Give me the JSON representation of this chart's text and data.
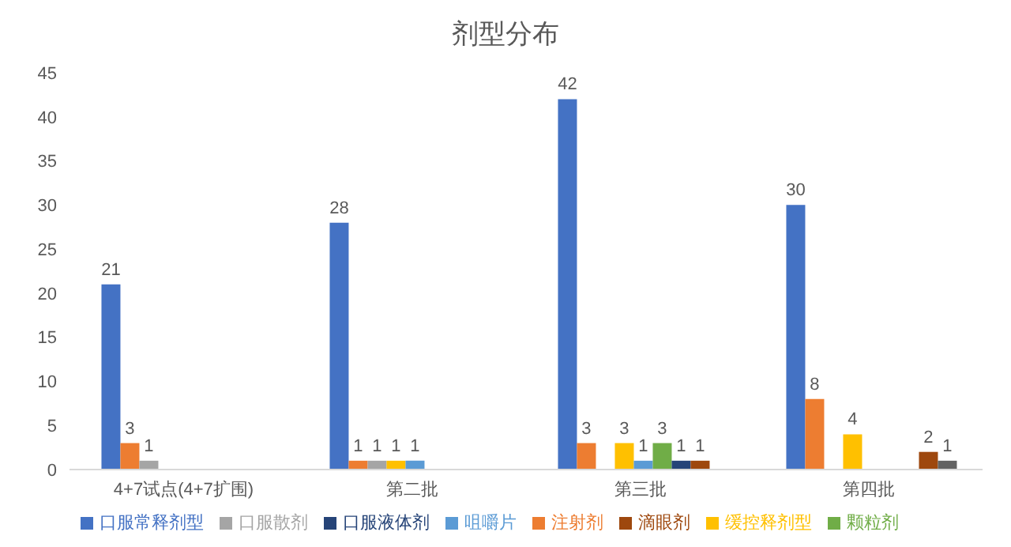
{
  "chart_data": {
    "type": "bar",
    "title": "剂型分布",
    "categories": [
      "4+7试点(4+7扩围)",
      "第二批",
      "第三批",
      "第四批"
    ],
    "series": [
      {
        "name": "口服常释剂型",
        "color": "#4472c4",
        "values": [
          21,
          28,
          42,
          30
        ]
      },
      {
        "name": "注射剂",
        "color": "#ed7d31",
        "values": [
          3,
          1,
          3,
          8
        ]
      },
      {
        "name": "口服散剂",
        "color": "#a5a5a5",
        "values": [
          1,
          1,
          null,
          null
        ]
      },
      {
        "name": "缓控释剂型",
        "color": "#ffc000",
        "values": [
          null,
          1,
          3,
          4
        ]
      },
      {
        "name": "咀嚼片",
        "color": "#5b9bd5",
        "values": [
          null,
          1,
          1,
          null
        ]
      },
      {
        "name": "颗粒剂",
        "color": "#70ad47",
        "values": [
          null,
          null,
          3,
          null
        ]
      },
      {
        "name": "口服液体剂",
        "color": "#264478",
        "values": [
          null,
          null,
          1,
          null
        ]
      },
      {
        "name": "滴眼剂",
        "color": "#9e480e",
        "values": [
          null,
          null,
          1,
          2
        ]
      },
      {
        "color": "#636363",
        "values": [
          null,
          null,
          null,
          1
        ]
      }
    ],
    "ylim": [
      0,
      45
    ],
    "yticks": [
      0,
      5,
      10,
      15,
      20,
      25,
      30,
      35,
      40,
      45
    ],
    "grid": false,
    "legend": "bottom",
    "data_labels": true
  }
}
